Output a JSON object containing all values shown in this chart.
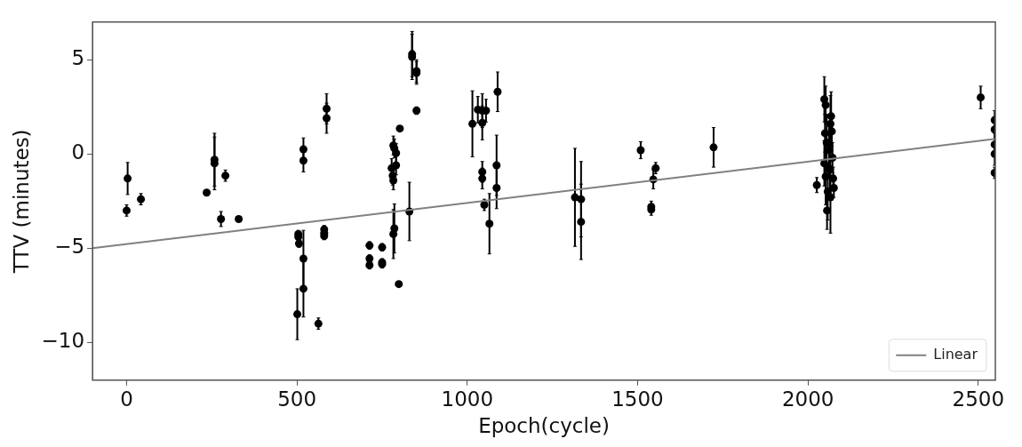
{
  "chart_data": {
    "type": "scatter",
    "xlabel": "Epoch(cycle)",
    "ylabel": "TTV (minutes)",
    "xlim": [
      -100,
      2550
    ],
    "xticks": [
      0,
      500,
      1000,
      1500,
      2000,
      2500
    ],
    "ylim": [
      -12,
      7
    ],
    "yticks": [
      -10,
      -5,
      0,
      5
    ],
    "grid": false,
    "legend": "bottom right",
    "marker": "circle",
    "series": [
      {
        "color": "#000000",
        "x": [
          0,
          3,
          42,
          235,
          258,
          258,
          277,
          290,
          329,
          501,
          504,
          504,
          506,
          519,
          519,
          519,
          519,
          563,
          580,
          580,
          580,
          587,
          587,
          713,
          713,
          713,
          750,
          750,
          750,
          783,
          786,
          783,
          786,
          791,
          791,
          778,
          781,
          783,
          802,
          799,
          830,
          838,
          838,
          851,
          851,
          851,
          1015,
          1031,
          1044,
          1055,
          1044,
          1044,
          1044,
          1050,
          1065,
          1089,
          1086,
          1086,
          1316,
          1334,
          1334,
          1509,
          1553,
          1546,
          1540,
          1540,
          1723,
          2026,
          2048,
          2052,
          2050,
          2055,
          2048,
          2052,
          2058,
          2062,
          2064,
          2066,
          2068,
          2070,
          2072,
          2074,
          2076,
          2056,
          2066,
          2507,
          2548,
          2548,
          2548,
          2548,
          2548
        ],
        "values": [
          -3.0,
          -1.3,
          -2.4,
          -2.05,
          -0.3,
          -0.5,
          -3.45,
          -1.15,
          -3.45,
          -8.5,
          -4.25,
          -4.4,
          -4.75,
          0.25,
          -0.35,
          -5.55,
          -7.15,
          -9.0,
          -4.0,
          -4.2,
          -4.35,
          2.4,
          1.9,
          -4.85,
          -5.55,
          -5.9,
          -4.95,
          -5.75,
          -5.85,
          -4.25,
          -3.95,
          0.45,
          0.3,
          0.05,
          -0.6,
          -0.75,
          -1.15,
          -1.4,
          1.35,
          -6.9,
          -3.05,
          5.3,
          5.15,
          4.4,
          4.3,
          2.3,
          1.6,
          2.35,
          2.3,
          2.3,
          1.65,
          -0.95,
          -1.3,
          -2.7,
          -3.7,
          3.3,
          -0.6,
          -1.8,
          -2.3,
          -2.4,
          -3.6,
          0.2,
          -0.75,
          -1.35,
          -2.8,
          -2.95,
          0.35,
          -1.65,
          2.9,
          2.6,
          1.1,
          0.6,
          -0.5,
          -1.2,
          -2.0,
          0.2,
          -0.8,
          -2.3,
          2.0,
          1.2,
          -0.2,
          -1.3,
          -1.8,
          -3.0,
          1.6,
          3.0,
          1.8,
          1.3,
          0.5,
          0.0,
          -1.0
        ],
        "errors": [
          0.3,
          0.85,
          0.3,
          0.1,
          1.4,
          1.4,
          0.4,
          0.3,
          0.1,
          1.35,
          0.2,
          0.2,
          0.2,
          0.6,
          0.6,
          1.5,
          1.5,
          0.3,
          0.2,
          0.2,
          0.2,
          0.8,
          0.8,
          0.2,
          0.2,
          0.2,
          0.2,
          0.2,
          0.2,
          1.3,
          1.3,
          0.5,
          0.5,
          0.5,
          0.5,
          0.5,
          0.5,
          0.5,
          0.1,
          0.1,
          1.55,
          1.2,
          1.2,
          0.6,
          0.6,
          0.2,
          1.75,
          0.7,
          0.9,
          0.6,
          0.9,
          0.55,
          0.55,
          0.3,
          1.6,
          1.05,
          1.6,
          1.1,
          2.6,
          2.0,
          2.0,
          0.45,
          0.3,
          0.5,
          0.3,
          0.3,
          1.05,
          0.4,
          1.2,
          1.0,
          1.0,
          1.5,
          1.2,
          1.5,
          1.5,
          1.3,
          1.0,
          1.9,
          1.3,
          0.8,
          0.8,
          0.6,
          0.5,
          1.0,
          1.5,
          0.6,
          0.5,
          0.5,
          0.6,
          0.6,
          0.3
        ]
      },
      {
        "type": "line",
        "name": "Linear",
        "color": "#808080",
        "x": [
          -100,
          2550
        ],
        "values": [
          -5.0,
          0.8
        ],
        "marker": "none"
      }
    ]
  }
}
